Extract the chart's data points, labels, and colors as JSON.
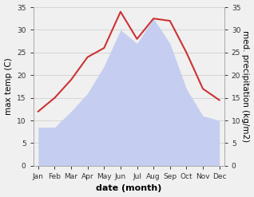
{
  "months": [
    "Jan",
    "Feb",
    "Mar",
    "Apr",
    "May",
    "Jun",
    "Jul",
    "Aug",
    "Sep",
    "Oct",
    "Nov",
    "Dec"
  ],
  "max_temp": [
    12,
    15,
    19,
    24,
    26,
    34,
    28,
    32.5,
    32,
    25,
    17,
    14.5
  ],
  "precipitation": [
    8.5,
    8.5,
    12,
    16,
    22,
    30,
    27,
    32.5,
    27,
    17,
    11,
    10
  ],
  "temp_color": "#cc3333",
  "precip_fill_color": "#c5cef0",
  "ylim": [
    0,
    35
  ],
  "xlabel": "date (month)",
  "ylabel_left": "max temp (C)",
  "ylabel_right": "med. precipitation (kg/m2)",
  "bg_color": "#f0f0f0",
  "label_fontsize": 7.5,
  "tick_fontsize": 6.5,
  "xlabel_fontsize": 8,
  "linewidth": 1.5,
  "yticks": [
    0,
    5,
    10,
    15,
    20,
    25,
    30,
    35
  ]
}
